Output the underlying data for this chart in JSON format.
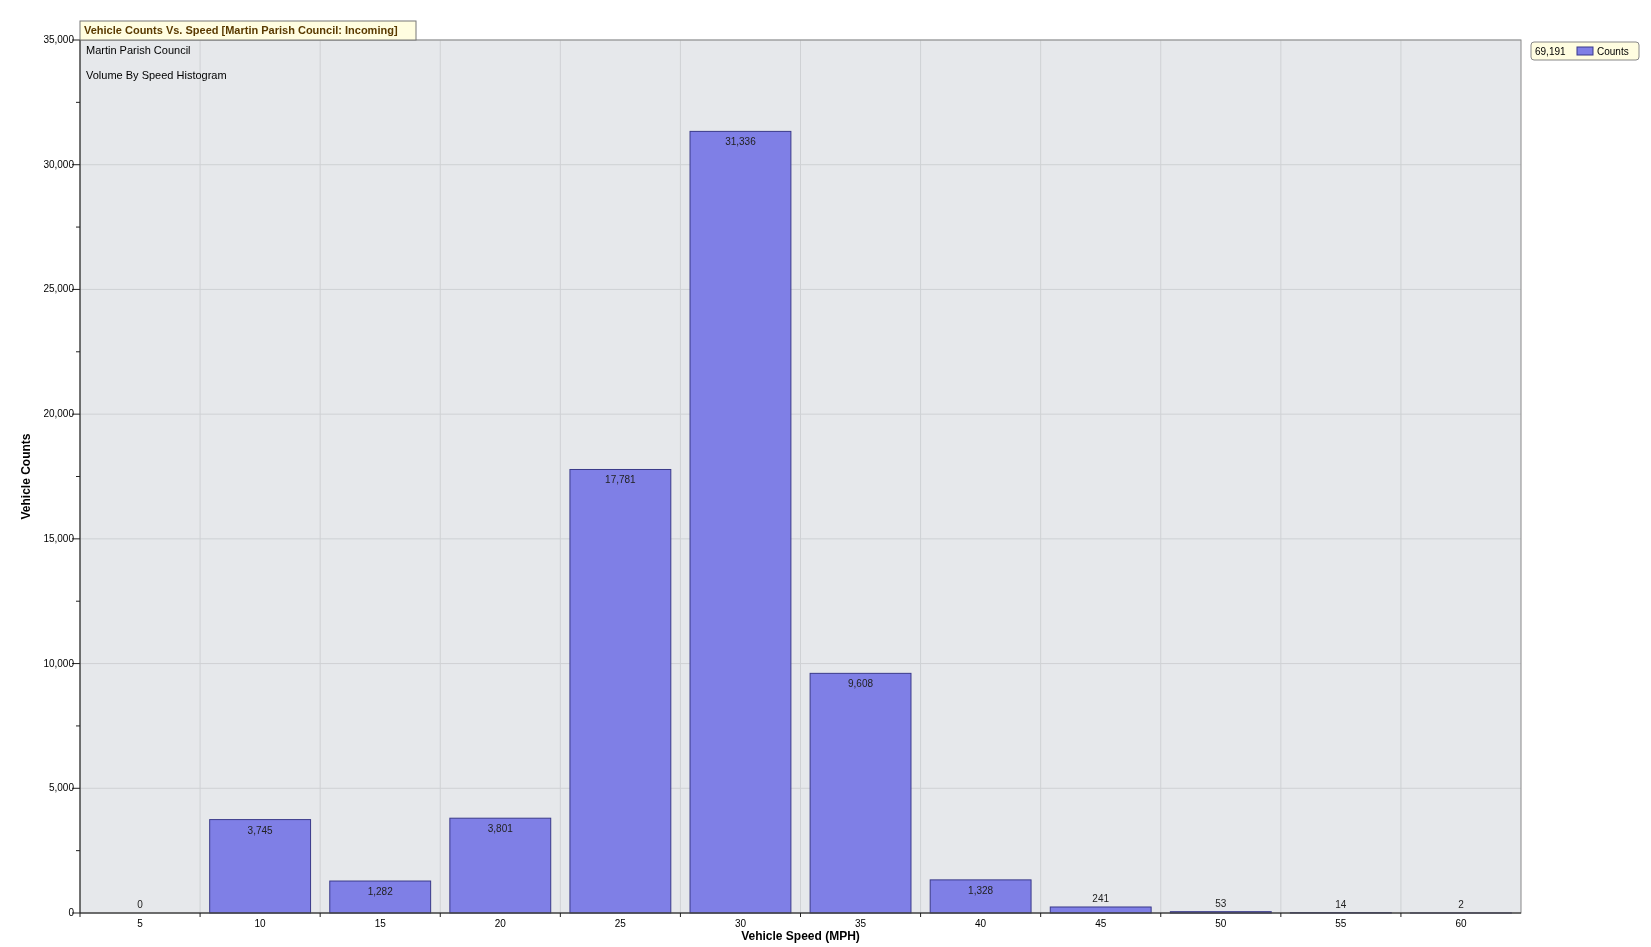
{
  "chart_data": {
    "type": "bar",
    "title": "Vehicle Counts Vs. Speed [Martin Parish Council: Incoming]",
    "subtitle": "Martin Parish Council",
    "annotations": [
      "Volume By Speed Histogram",
      "69,191"
    ],
    "xlabel": "Vehicle Speed (MPH)",
    "ylabel": "Vehicle Counts",
    "categories": [
      "5",
      "10",
      "15",
      "20",
      "25",
      "30",
      "35",
      "40",
      "45",
      "50",
      "55",
      "60"
    ],
    "series": [
      {
        "name": "Counts",
        "color": "#7f7fe6",
        "values": [
          0,
          3745,
          1282,
          3801,
          17781,
          31336,
          9608,
          1328,
          241,
          53,
          14,
          2
        ],
        "value_labels": [
          "0",
          "3,745",
          "1,282",
          "3,801",
          "17,781",
          "31,336",
          "9,608",
          "1,328",
          "241",
          "53",
          "14",
          "2"
        ]
      }
    ],
    "grid": true,
    "legend": "top right",
    "ylim": [
      0,
      35000
    ],
    "yticks": [
      0,
      {
        "value": 2500,
        "label": null
      },
      {
        "value": 5000,
        "label": "5,000"
      },
      {
        "value": 7500,
        "label": null
      },
      {
        "value": 10000,
        "label": "10,000"
      },
      {
        "value": 12500,
        "label": null
      },
      {
        "value": 15000,
        "label": "15,000"
      },
      {
        "value": 17500,
        "label": null
      },
      {
        "value": 20000,
        "label": "20,000"
      },
      {
        "value": 22500,
        "label": null
      },
      {
        "value": 25000,
        "label": "25,000"
      },
      {
        "value": 27500,
        "label": null
      },
      {
        "value": 30000,
        "label": "30,000"
      },
      {
        "value": 32500,
        "label": null
      },
      {
        "value": 35000,
        "label": "35,000"
      }
    ]
  }
}
